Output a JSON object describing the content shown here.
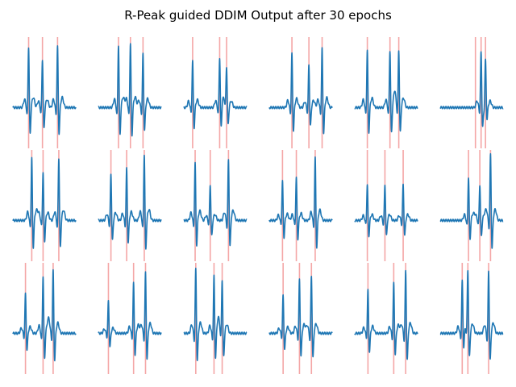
{
  "figure": {
    "title": "R-Peak guided DDIM Output after 30 epochs"
  },
  "colors": {
    "signal": "#1f77b4",
    "rpeak_line": "#f4a6a6",
    "background": "#ffffff"
  },
  "chart_data": {
    "type": "line",
    "layout": "grid 3x6 of ECG subplots, axes hidden",
    "title": "R-Peak guided DDIM Output after 30 epochs",
    "axes_visible": false,
    "grid": false,
    "xlim": [
      0,
      100
    ],
    "ylim": [
      -1.1,
      1.9
    ],
    "panels": [
      {
        "r_peaks": [
          25,
          47,
          71
        ],
        "amps": [
          1.7,
          1.35,
          1.7
        ]
      },
      {
        "r_peaks": [
          32,
          51,
          71
        ],
        "amps": [
          1.75,
          1.8,
          1.5
        ]
      },
      {
        "r_peaks": [
          14,
          57,
          68
        ],
        "amps": [
          1.3,
          1.4,
          1.1
        ]
      },
      {
        "r_peaks": [
          36,
          63,
          84
        ],
        "amps": [
          1.5,
          1.2,
          1.65
        ]
      },
      {
        "r_peaks": [
          20,
          56,
          70
        ],
        "amps": [
          1.6,
          1.6,
          1.6
        ]
      },
      {
        "r_peaks": [
          56,
          65,
          72
        ],
        "amps": [
          0.0,
          1.4,
          1.1
        ]
      },
      {
        "r_peaks": [
          30,
          48,
          73
        ],
        "amps": [
          1.75,
          1.35,
          1.75
        ]
      },
      {
        "r_peaks": [
          20,
          45,
          73
        ],
        "amps": [
          1.3,
          1.45,
          1.85
        ]
      },
      {
        "r_peaks": [
          18,
          42,
          71
        ],
        "amps": [
          1.6,
          1.0,
          1.7
        ]
      },
      {
        "r_peaks": [
          21,
          43,
          73
        ],
        "amps": [
          1.1,
          1.2,
          1.75
        ]
      },
      {
        "r_peaks": [
          20,
          48,
          77
        ],
        "amps": [
          1.0,
          1.0,
          1.0
        ]
      },
      {
        "r_peaks": [
          45,
          63,
          80
        ],
        "amps": [
          1.2,
          1.0,
          1.85
        ]
      },
      {
        "r_peaks": [
          20,
          48,
          64
        ],
        "amps": [
          1.1,
          1.6,
          1.75
        ]
      },
      {
        "r_peaks": [
          16,
          56,
          75
        ],
        "amps": [
          0.9,
          1.4,
          1.7
        ]
      },
      {
        "r_peaks": [
          19,
          48,
          61
        ],
        "amps": [
          1.8,
          1.6,
          1.5
        ]
      },
      {
        "r_peaks": [
          22,
          48,
          67
        ],
        "amps": [
          1.05,
          1.5,
          1.6
        ]
      },
      {
        "r_peaks": [
          21,
          62,
          81
        ],
        "amps": [
          1.2,
          1.4,
          1.75
        ]
      },
      {
        "r_peaks": [
          35,
          44,
          77
        ],
        "amps": [
          1.4,
          1.6,
          1.75
        ]
      }
    ]
  }
}
